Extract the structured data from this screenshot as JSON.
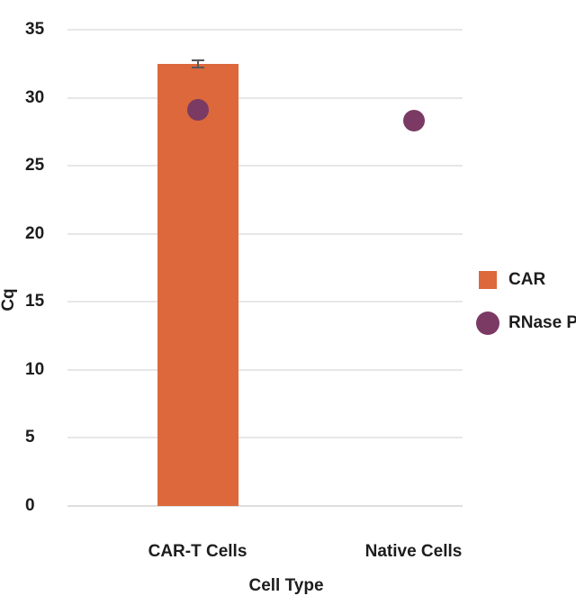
{
  "chart_data": {
    "type": "combo",
    "categories": [
      "CAR-T Cells",
      "Native Cells"
    ],
    "series": [
      {
        "name": "CAR",
        "type": "bar",
        "values": [
          32.5,
          null
        ],
        "error": 0.25,
        "color": "#DC683B"
      },
      {
        "name": "RNase P",
        "type": "scatter",
        "values": [
          29.1,
          28.3
        ],
        "color": "#7B3A64"
      }
    ],
    "title": "",
    "xlabel": "Cell Type",
    "ylabel": "Cq",
    "ylim": [
      0,
      35
    ],
    "yticks": [
      0,
      5,
      10,
      15,
      20,
      25,
      30,
      35
    ],
    "grid": true,
    "legend_position": "right"
  },
  "legend": {
    "items": [
      {
        "label": "CAR",
        "marker": "square",
        "color": "#DC683B"
      },
      {
        "label": "RNase P",
        "marker": "circle",
        "color": "#7B3A64"
      }
    ]
  },
  "colors": {
    "background": "#FFFFFF",
    "grid": "#E7E7E7",
    "baseline": "#DDDDDD",
    "text": "#1D1D1D",
    "error_bar": "#58585B"
  }
}
